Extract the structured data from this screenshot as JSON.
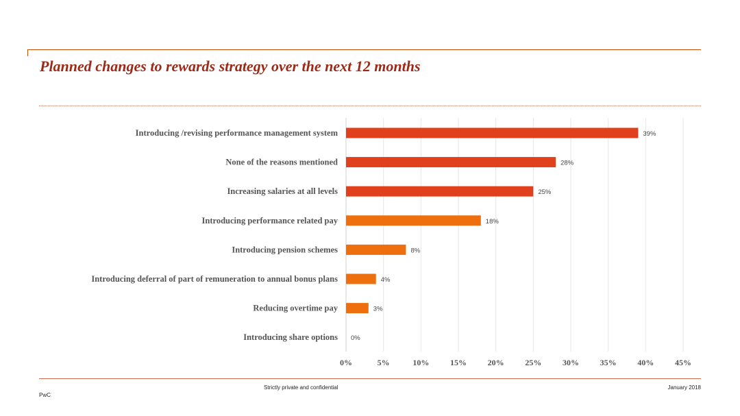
{
  "slide": {
    "title": "Planned changes to rewards strategy over the next 12 months"
  },
  "footer": {
    "confidentiality": "Strictly private and confidential",
    "date": "January 2018",
    "brand": "PwC"
  },
  "chart_data": {
    "type": "bar",
    "orientation": "horizontal",
    "categories": [
      "Introducing /revising performance management system",
      "None of the reasons mentioned",
      "Increasing salaries at all levels",
      "Introducing performance related pay",
      "Introducing pension schemes",
      "Introducing deferral of part of remuneration to annual bonus plans",
      "Reducing overtime pay",
      "Introducing share options"
    ],
    "values": [
      39,
      28,
      25,
      18,
      8,
      4,
      3,
      0
    ],
    "data_labels": [
      "39%",
      "28%",
      "25%",
      "18%",
      "8%",
      "4%",
      "3%",
      "0%"
    ],
    "bar_colors": [
      "#e0401c",
      "#e0401c",
      "#e0401c",
      "#ee6f0d",
      "#ee6f0d",
      "#ee6f0d",
      "#ee6f0d",
      "#ee6f0d"
    ],
    "xlim": [
      0,
      45
    ],
    "xticks": [
      0,
      5,
      10,
      15,
      20,
      25,
      30,
      35,
      40,
      45
    ],
    "xtick_labels": [
      "0%",
      "5%",
      "10%",
      "15%",
      "20%",
      "25%",
      "30%",
      "35%",
      "40%",
      "45%"
    ],
    "grid": "vertical",
    "legend": "none",
    "xlabel": "",
    "ylabel": ""
  }
}
